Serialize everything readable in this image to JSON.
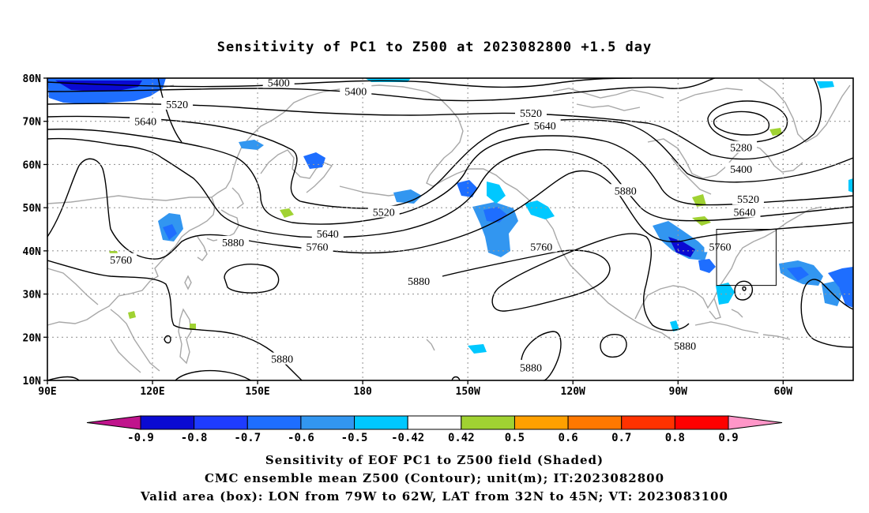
{
  "title": "Sensitivity of PC1 to Z500 at 2023082800 +1.5 day",
  "lat_labels": [
    "80N",
    "70N",
    "60N",
    "50N",
    "40N",
    "30N",
    "20N",
    "10N"
  ],
  "lon_labels": [
    "90E",
    "120E",
    "150E",
    "180",
    "150W",
    "120W",
    "90W",
    "60W"
  ],
  "contour_labels": [
    {
      "text": "5400",
      "lon": 156,
      "lat": 79
    },
    {
      "text": "5400",
      "lon": 178,
      "lat": 77
    },
    {
      "text": "5520",
      "lon": 127,
      "lat": 74
    },
    {
      "text": "5520",
      "lon": 228,
      "lat": 72
    },
    {
      "text": "5640",
      "lon": 118,
      "lat": 70
    },
    {
      "text": "5640",
      "lon": 232,
      "lat": 69
    },
    {
      "text": "5280",
      "lon": 288,
      "lat": 64
    },
    {
      "text": "5400",
      "lon": 288,
      "lat": 59
    },
    {
      "text": "5880",
      "lon": 255,
      "lat": 54
    },
    {
      "text": "5520",
      "lon": 290,
      "lat": 52
    },
    {
      "text": "5520",
      "lon": 186,
      "lat": 49
    },
    {
      "text": "5640",
      "lon": 289,
      "lat": 49
    },
    {
      "text": "5640",
      "lon": 170,
      "lat": 44
    },
    {
      "text": "5880",
      "lon": 143,
      "lat": 42
    },
    {
      "text": "5760",
      "lon": 167,
      "lat": 41
    },
    {
      "text": "5760",
      "lon": 282,
      "lat": 41
    },
    {
      "text": "5760",
      "lon": 231,
      "lat": 41
    },
    {
      "text": "5760",
      "lon": 111,
      "lat": 38
    },
    {
      "text": "5880",
      "lon": 196,
      "lat": 33
    },
    {
      "text": "5880",
      "lon": 272,
      "lat": 18
    },
    {
      "text": "5880",
      "lon": 157,
      "lat": 15
    },
    {
      "text": "5880",
      "lon": 228,
      "lat": 13
    }
  ],
  "colorbar": {
    "labels": [
      "-0.9",
      "-0.8",
      "-0.7",
      "-0.6",
      "-0.5",
      "-0.42",
      "0.42",
      "0.5",
      "0.6",
      "0.7",
      "0.8",
      "0.9"
    ],
    "colors": [
      "#c0148c",
      "#0a0ad2",
      "#1e3cff",
      "#1e6eff",
      "#3296f0",
      "#00c8ff",
      "#ffffff",
      "#a0d232",
      "#ffa000",
      "#ff7800",
      "#ff3200",
      "#ff0000",
      "#ff96c8"
    ]
  },
  "valid_box": {
    "lon_min": -79,
    "lon_max": -62,
    "lat_min": 32,
    "lat_max": 45
  },
  "captions": {
    "line1": "Sensitivity of EOF PC1 to Z500 field (Shaded)",
    "line2": "CMC ensemble mean Z500 (Contour); unit(m); IT:2023082800",
    "line3": "Valid area (box): LON from 79W to 62W, LAT from 32N to 45N; VT: 2023083100"
  }
}
